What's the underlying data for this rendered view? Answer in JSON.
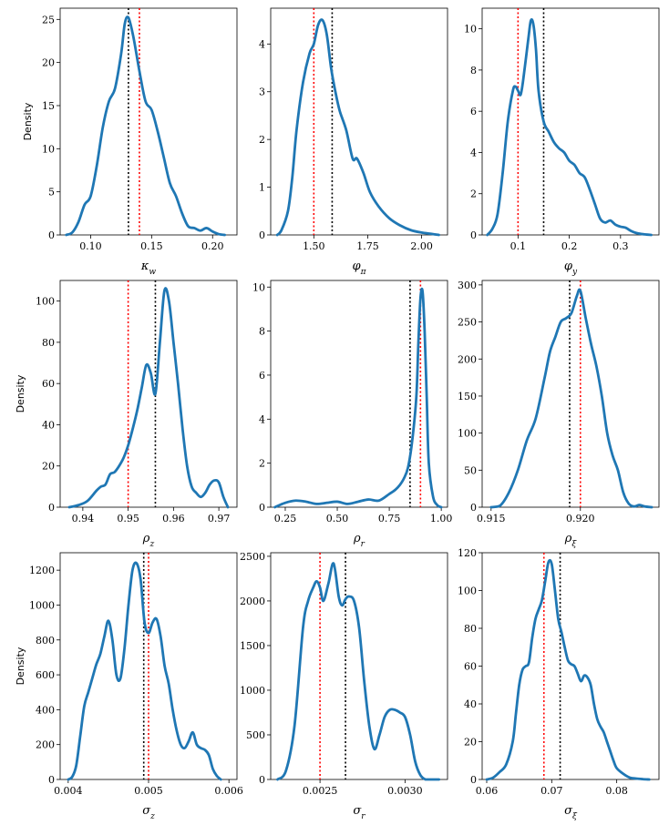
{
  "figure": {
    "colors": {
      "kde": "#1f77b4",
      "posterior_mean": "#000000",
      "true_value": "#ff0000",
      "axes": "#000000"
    }
  },
  "chart_data": [
    {
      "type": "line",
      "xlabel": "κ_w",
      "ylabel": "Density",
      "xlim": [
        0.075,
        0.22
      ],
      "ylim": [
        0,
        26.3
      ],
      "xticks": [
        0.1,
        0.15,
        0.2
      ],
      "xticklabels": [
        "0.10",
        "0.15",
        "0.20"
      ],
      "yticks": [
        0,
        5,
        10,
        15,
        20,
        25
      ],
      "yticklabels": [
        "0",
        "5",
        "10",
        "15",
        "20",
        "25"
      ],
      "vline_black": 0.131,
      "vline_red": 0.14,
      "series": {
        "x": [
          0.08,
          0.085,
          0.09,
          0.095,
          0.1,
          0.105,
          0.11,
          0.115,
          0.12,
          0.125,
          0.128,
          0.131,
          0.135,
          0.14,
          0.145,
          0.15,
          0.155,
          0.16,
          0.165,
          0.17,
          0.175,
          0.18,
          0.185,
          0.19,
          0.195,
          0.2,
          0.205,
          0.21
        ],
        "y": [
          0,
          0.3,
          1.5,
          3.5,
          4.5,
          8,
          12.5,
          15.5,
          17,
          21,
          24.5,
          25.2,
          23,
          19,
          15.5,
          14.5,
          12,
          9,
          6,
          4.5,
          2.5,
          1,
          0.8,
          0.5,
          0.8,
          0.4,
          0.1,
          0
        ]
      }
    },
    {
      "type": "line",
      "xlabel": "φ_π",
      "ylabel": "",
      "xlim": [
        1.3,
        2.12
      ],
      "ylim": [
        0,
        4.75
      ],
      "xticks": [
        1.5,
        1.75,
        2.0
      ],
      "xticklabels": [
        "1.50",
        "1.75",
        "2.00"
      ],
      "yticks": [
        0,
        1,
        2,
        3,
        4
      ],
      "yticklabels": [
        "0",
        "1",
        "2",
        "3",
        "4"
      ],
      "vline_black": 1.585,
      "vline_red": 1.5,
      "series": {
        "x": [
          1.33,
          1.35,
          1.38,
          1.4,
          1.42,
          1.45,
          1.48,
          1.5,
          1.52,
          1.54,
          1.56,
          1.58,
          1.6,
          1.62,
          1.65,
          1.68,
          1.7,
          1.73,
          1.76,
          1.8,
          1.85,
          1.9,
          1.95,
          2.0,
          2.05,
          2.08
        ],
        "y": [
          0,
          0.1,
          0.5,
          1.2,
          2.2,
          3.2,
          3.8,
          4.0,
          4.4,
          4.5,
          4.2,
          3.5,
          3.0,
          2.6,
          2.2,
          1.6,
          1.6,
          1.3,
          0.9,
          0.6,
          0.35,
          0.2,
          0.1,
          0.05,
          0.02,
          0
        ]
      }
    },
    {
      "type": "line",
      "xlabel": "φ_y",
      "ylabel": "",
      "xlim": [
        0.03,
        0.375
      ],
      "ylim": [
        0,
        11.0
      ],
      "xticks": [
        0.1,
        0.2,
        0.3
      ],
      "xticklabels": [
        "0.1",
        "0.2",
        "0.3"
      ],
      "yticks": [
        0,
        2,
        4,
        6,
        8,
        10
      ],
      "yticklabels": [
        "0",
        "2",
        "4",
        "6",
        "8",
        "10"
      ],
      "vline_black": 0.15,
      "vline_red": 0.1,
      "series": {
        "x": [
          0.04,
          0.05,
          0.06,
          0.07,
          0.08,
          0.09,
          0.095,
          0.1,
          0.105,
          0.11,
          0.12,
          0.125,
          0.13,
          0.135,
          0.14,
          0.15,
          0.16,
          0.17,
          0.18,
          0.19,
          0.2,
          0.21,
          0.22,
          0.23,
          0.24,
          0.25,
          0.26,
          0.27,
          0.28,
          0.29,
          0.3,
          0.31,
          0.32,
          0.33,
          0.34,
          0.35,
          0.36
        ],
        "y": [
          0,
          0.3,
          1,
          3,
          5.5,
          7,
          7.2,
          7.0,
          6.8,
          7.5,
          9.5,
          10.4,
          10.2,
          9,
          7,
          5.5,
          5.0,
          4.5,
          4.2,
          4.0,
          3.6,
          3.4,
          3.0,
          2.8,
          2.2,
          1.5,
          0.8,
          0.6,
          0.7,
          0.5,
          0.4,
          0.35,
          0.2,
          0.1,
          0.05,
          0.02,
          0
        ]
      }
    },
    {
      "type": "line",
      "xlabel": "ρ_z",
      "ylabel": "Density",
      "xlim": [
        0.935,
        0.974
      ],
      "ylim": [
        0,
        110
      ],
      "xticks": [
        0.94,
        0.95,
        0.96,
        0.97
      ],
      "xticklabels": [
        "0.94",
        "0.95",
        "0.96",
        "0.97"
      ],
      "yticks": [
        0,
        20,
        40,
        60,
        80,
        100
      ],
      "yticklabels": [
        "0",
        "20",
        "40",
        "60",
        "80",
        "100"
      ],
      "vline_black": 0.956,
      "vline_red": 0.95,
      "series": {
        "x": [
          0.937,
          0.939,
          0.941,
          0.943,
          0.944,
          0.945,
          0.946,
          0.947,
          0.948,
          0.949,
          0.95,
          0.951,
          0.952,
          0.953,
          0.954,
          0.955,
          0.956,
          0.957,
          0.958,
          0.959,
          0.96,
          0.961,
          0.962,
          0.963,
          0.964,
          0.965,
          0.966,
          0.967,
          0.968,
          0.969,
          0.97,
          0.971,
          0.972
        ],
        "y": [
          0,
          1,
          3,
          8,
          10,
          11,
          16,
          17,
          20,
          24,
          30,
          38,
          47,
          58,
          69,
          65,
          55,
          80,
          105,
          100,
          80,
          60,
          38,
          20,
          10,
          7,
          5,
          7,
          11,
          13,
          12,
          5,
          0
        ]
      }
    },
    {
      "type": "line",
      "xlabel": "ρ_r",
      "ylabel": "",
      "xlim": [
        0.18,
        1.03
      ],
      "ylim": [
        0,
        10.3
      ],
      "xticks": [
        0.25,
        0.5,
        0.75,
        1.0
      ],
      "xticklabels": [
        "0.25",
        "0.50",
        "0.75",
        "1.00"
      ],
      "yticks": [
        0,
        2,
        4,
        6,
        8,
        10
      ],
      "yticklabels": [
        "0",
        "2",
        "4",
        "6",
        "8",
        "10"
      ],
      "vline_black": 0.85,
      "vline_red": 0.9,
      "series": {
        "x": [
          0.2,
          0.25,
          0.3,
          0.35,
          0.4,
          0.45,
          0.5,
          0.55,
          0.6,
          0.65,
          0.7,
          0.75,
          0.78,
          0.8,
          0.82,
          0.84,
          0.86,
          0.88,
          0.89,
          0.9,
          0.91,
          0.92,
          0.93,
          0.94,
          0.96,
          0.98,
          1.0
        ],
        "y": [
          0,
          0.2,
          0.3,
          0.25,
          0.15,
          0.2,
          0.25,
          0.15,
          0.25,
          0.35,
          0.3,
          0.6,
          0.8,
          1.0,
          1.3,
          1.8,
          3.0,
          5.0,
          7.5,
          9.5,
          9.8,
          8.0,
          5.0,
          2.0,
          0.5,
          0.1,
          0
        ]
      }
    },
    {
      "type": "line",
      "xlabel": "ρ_ξ",
      "ylabel": "",
      "xlim": [
        0.9145,
        0.9244
      ],
      "ylim": [
        0,
        306
      ],
      "xticks": [
        0.915,
        0.92
      ],
      "xticklabels": [
        "0.915",
        "0.920"
      ],
      "yticks": [
        0,
        50,
        100,
        150,
        200,
        250,
        300
      ],
      "yticklabels": [
        "0",
        "50",
        "100",
        "150",
        "200",
        "250",
        "300"
      ],
      "vline_black": 0.9194,
      "vline_red": 0.92,
      "series": {
        "x": [
          0.915,
          0.9155,
          0.916,
          0.9165,
          0.917,
          0.9175,
          0.918,
          0.9183,
          0.9186,
          0.9189,
          0.9192,
          0.9195,
          0.9198,
          0.92,
          0.9203,
          0.9206,
          0.9209,
          0.9212,
          0.9215,
          0.9218,
          0.9221,
          0.9224,
          0.9227,
          0.923,
          0.9233,
          0.9236,
          0.924
        ],
        "y": [
          0,
          2,
          20,
          50,
          90,
          120,
          175,
          210,
          230,
          250,
          255,
          262,
          285,
          292,
          255,
          220,
          190,
          150,
          100,
          70,
          50,
          20,
          5,
          1,
          3,
          1,
          0
        ]
      }
    },
    {
      "type": "line",
      "xlabel": "σ_z",
      "ylabel": "Density",
      "xlim": [
        0.0039,
        0.0061
      ],
      "ylim": [
        0,
        1300
      ],
      "xticks": [
        0.004,
        0.005,
        0.006
      ],
      "xticklabels": [
        "0.004",
        "0.005",
        "0.006"
      ],
      "yticks": [
        0,
        200,
        400,
        600,
        800,
        1000,
        1200
      ],
      "yticklabels": [
        "0",
        "200",
        "400",
        "600",
        "800",
        "1000",
        "1200"
      ],
      "vline_black": 0.00494,
      "vline_red": 0.005,
      "series": {
        "x": [
          0.004,
          0.00405,
          0.0041,
          0.00415,
          0.0042,
          0.00425,
          0.0043,
          0.00435,
          0.0044,
          0.00445,
          0.0045,
          0.00455,
          0.0046,
          0.00465,
          0.0047,
          0.00475,
          0.0048,
          0.00485,
          0.0049,
          0.00495,
          0.005,
          0.00505,
          0.0051,
          0.00515,
          0.0052,
          0.00525,
          0.0053,
          0.00535,
          0.0054,
          0.00545,
          0.0055,
          0.00555,
          0.0056,
          0.00565,
          0.0057,
          0.00575,
          0.0058,
          0.00585,
          0.0059
        ],
        "y": [
          0,
          15,
          80,
          250,
          420,
          500,
          580,
          660,
          720,
          820,
          910,
          800,
          600,
          580,
          750,
          1000,
          1200,
          1240,
          1150,
          900,
          840,
          900,
          920,
          820,
          650,
          550,
          400,
          280,
          200,
          180,
          220,
          270,
          200,
          180,
          170,
          140,
          60,
          20,
          0
        ]
      }
    },
    {
      "type": "line",
      "xlabel": "σ_r",
      "ylabel": "",
      "xlim": [
        0.00221,
        0.00325
      ],
      "ylim": [
        0,
        2540
      ],
      "xticks": [
        0.0025,
        0.003
      ],
      "xticklabels": [
        "0.0025",
        "0.0030"
      ],
      "yticks": [
        0,
        500,
        1000,
        1500,
        2000,
        2500
      ],
      "yticklabels": [
        "0",
        "500",
        "1000",
        "1500",
        "2000",
        "2500"
      ],
      "vline_black": 0.00265,
      "vline_red": 0.0025,
      "series": {
        "x": [
          0.00225,
          0.0023,
          0.00235,
          0.0024,
          0.00243,
          0.00246,
          0.00248,
          0.0025,
          0.00252,
          0.00255,
          0.00258,
          0.00261,
          0.00263,
          0.00265,
          0.00267,
          0.0027,
          0.00273,
          0.00276,
          0.00279,
          0.00282,
          0.00285,
          0.00288,
          0.00291,
          0.00294,
          0.00297,
          0.003,
          0.00303,
          0.00306,
          0.00309,
          0.00312,
          0.00315,
          0.00318,
          0.0032
        ],
        "y": [
          0,
          100,
          600,
          1700,
          2000,
          2150,
          2220,
          2150,
          2000,
          2200,
          2420,
          2050,
          1950,
          2020,
          2050,
          2000,
          1700,
          1100,
          600,
          340,
          500,
          700,
          780,
          780,
          750,
          700,
          500,
          200,
          50,
          0,
          0,
          0,
          0
        ]
      }
    },
    {
      "type": "line",
      "xlabel": "σ_ξ",
      "ylabel": "",
      "xlim": [
        0.0593,
        0.0865
      ],
      "ylim": [
        0,
        120
      ],
      "xticks": [
        0.06,
        0.07,
        0.08
      ],
      "xticklabels": [
        "0.06",
        "0.07",
        "0.08"
      ],
      "yticks": [
        0,
        20,
        40,
        60,
        80,
        100,
        120
      ],
      "yticklabels": [
        "0",
        "20",
        "40",
        "60",
        "80",
        "100",
        "120"
      ],
      "vline_black": 0.0713,
      "vline_red": 0.0688,
      "series": {
        "x": [
          0.06,
          0.061,
          0.062,
          0.063,
          0.064,
          0.0645,
          0.065,
          0.0655,
          0.066,
          0.0665,
          0.067,
          0.0675,
          0.068,
          0.0685,
          0.069,
          0.0695,
          0.07,
          0.0705,
          0.071,
          0.0715,
          0.072,
          0.0725,
          0.073,
          0.0735,
          0.074,
          0.0745,
          0.075,
          0.0755,
          0.076,
          0.0765,
          0.077,
          0.0775,
          0.078,
          0.0785,
          0.079,
          0.0795,
          0.08,
          0.081,
          0.082,
          0.083,
          0.084,
          0.085
        ],
        "y": [
          0,
          1,
          4,
          8,
          20,
          35,
          50,
          58,
          60,
          62,
          75,
          85,
          90,
          95,
          105,
          115,
          114,
          100,
          85,
          78,
          70,
          63,
          61,
          60,
          56,
          52,
          55,
          54,
          50,
          40,
          32,
          28,
          25,
          20,
          15,
          10,
          6,
          3,
          1,
          0.5,
          0.2,
          0
        ]
      }
    }
  ]
}
